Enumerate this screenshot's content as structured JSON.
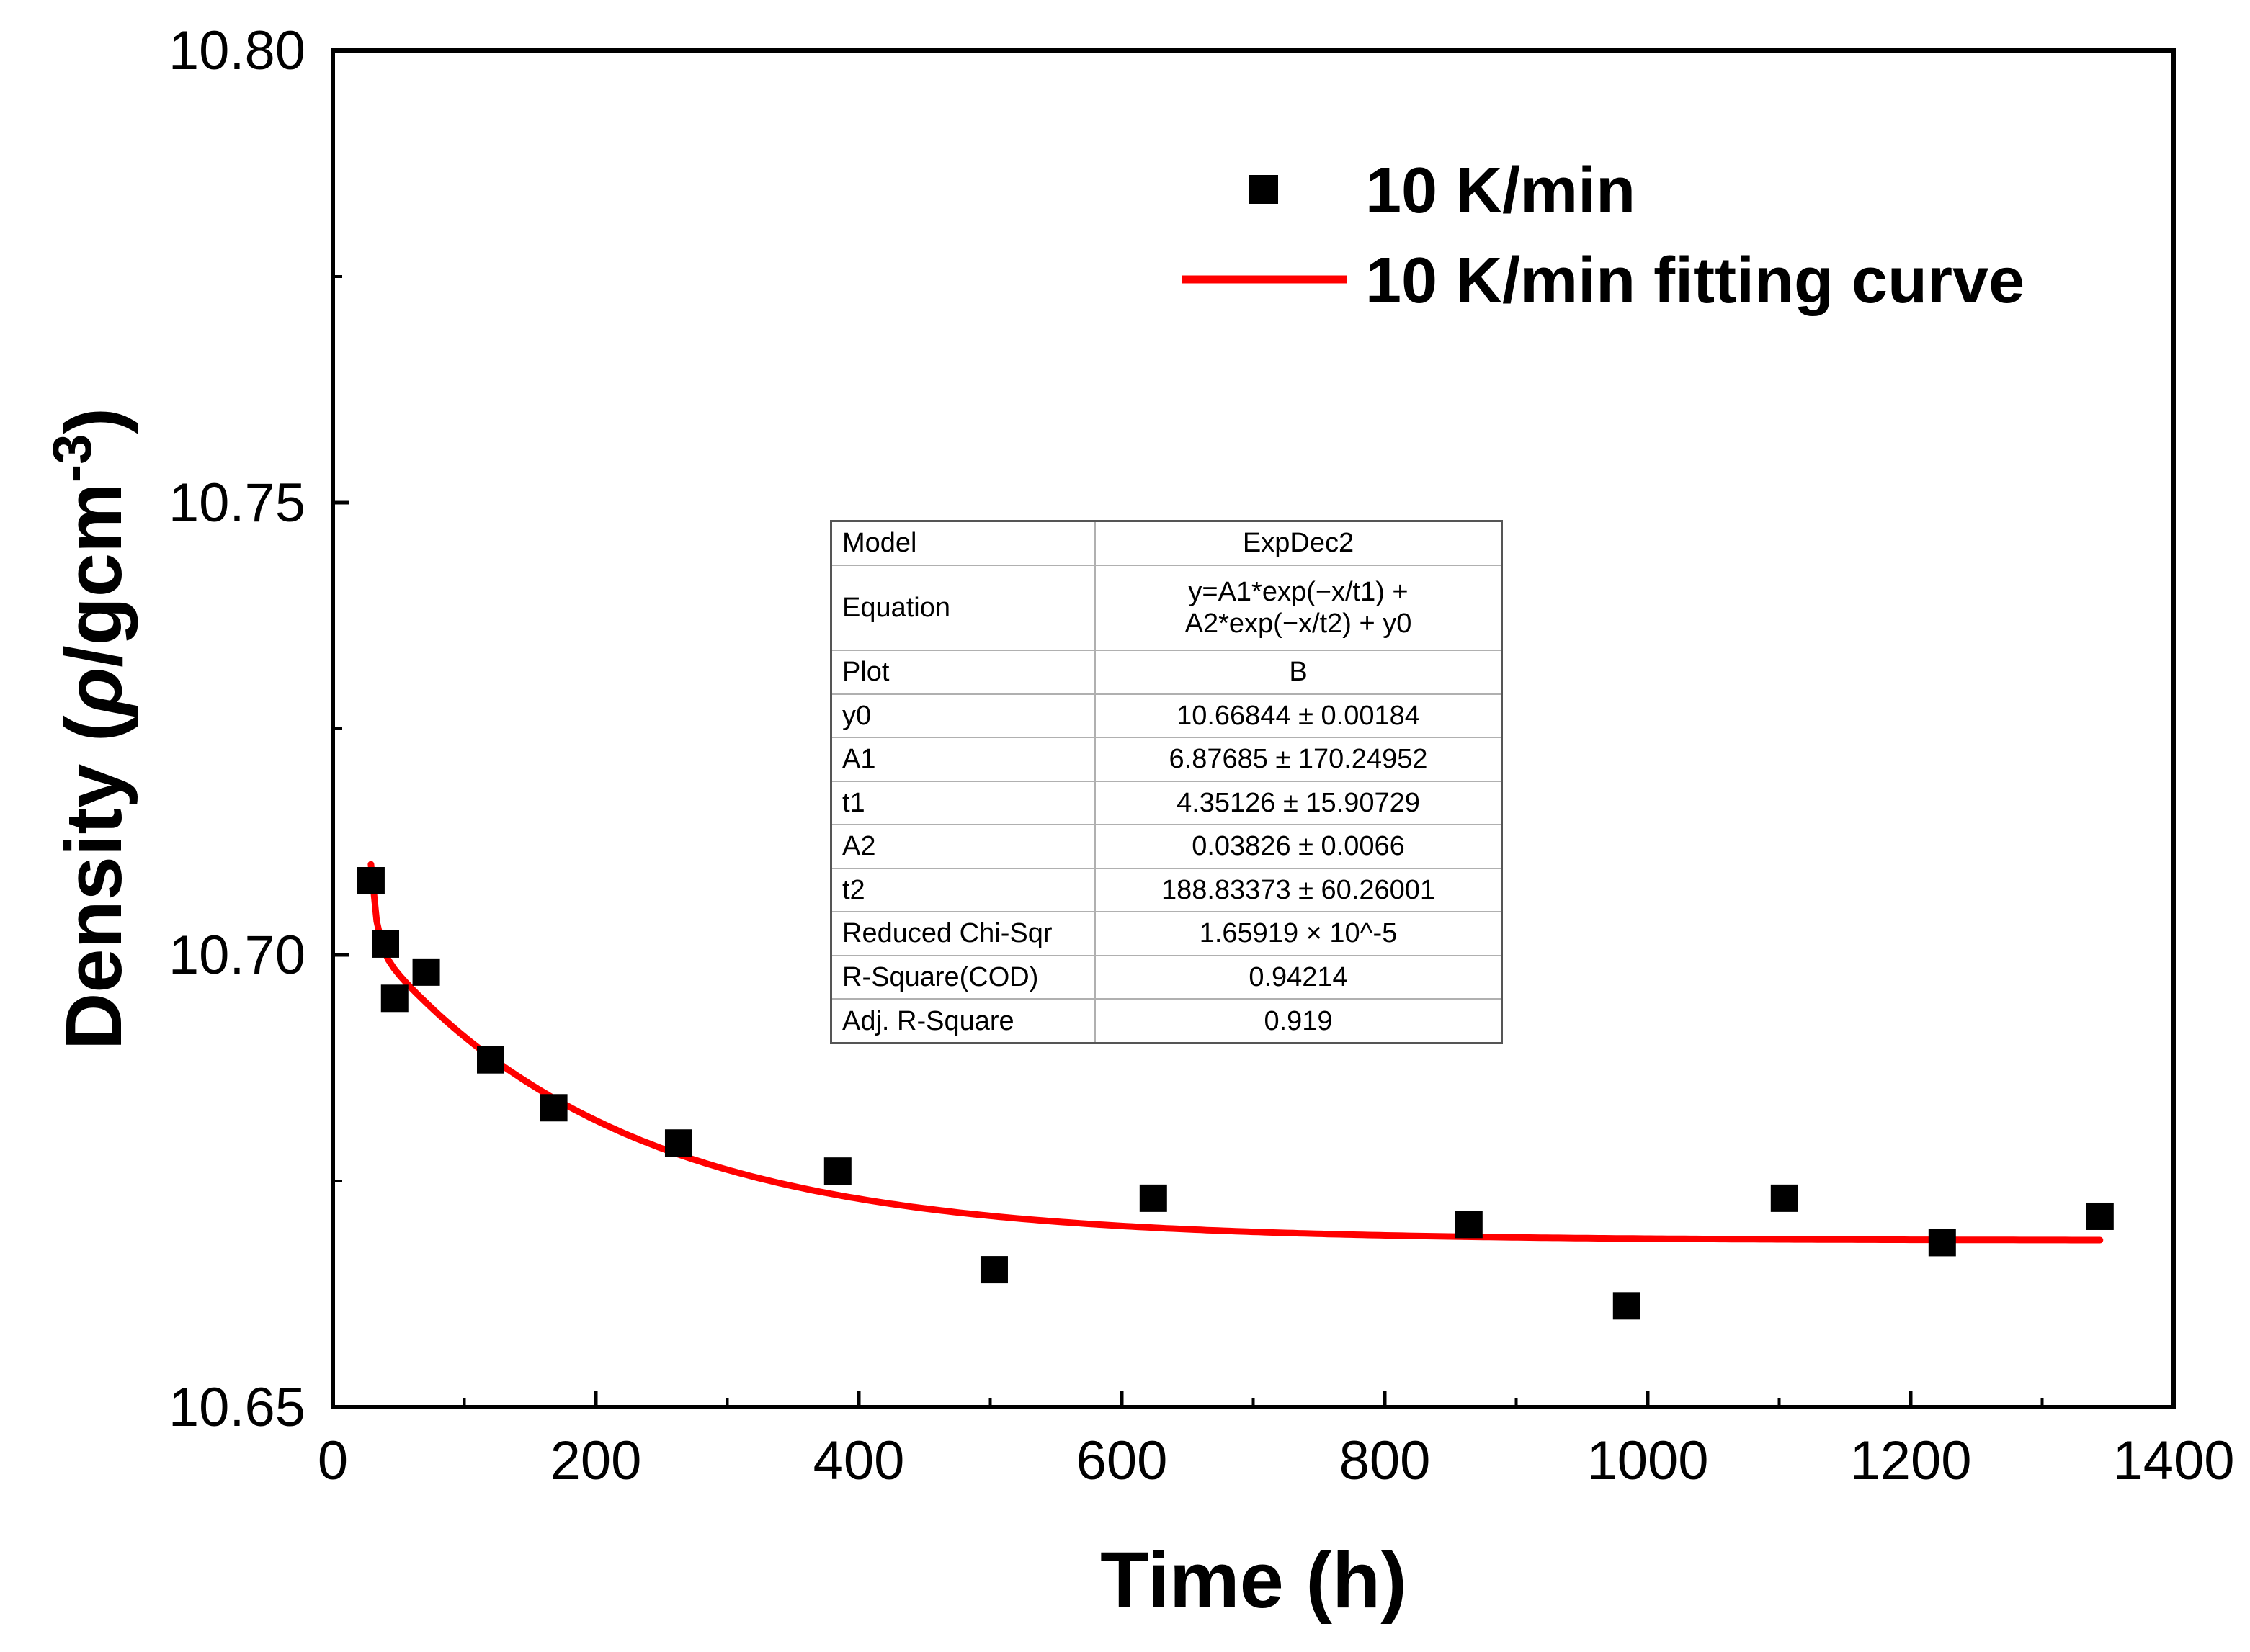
{
  "chart_data": {
    "type": "scatter",
    "title": "",
    "xlabel": "Time (h)",
    "ylabel_main": "Density (",
    "ylabel_rho": "ρ",
    "ylabel_unit": "/gcm",
    "ylabel_sup": "-3",
    "ylabel_close": ")",
    "xlim": [
      0,
      1400
    ],
    "ylim": [
      10.65,
      10.8
    ],
    "x_ticks": [
      0,
      200,
      400,
      600,
      800,
      1000,
      1200,
      1400
    ],
    "x_tick_labels": [
      "0",
      "200",
      "400",
      "600",
      "800",
      "1000",
      "1200",
      "1400"
    ],
    "y_ticks": [
      10.65,
      10.7,
      10.75,
      10.8
    ],
    "y_tick_labels": [
      "10.65",
      "10.70",
      "10.75",
      "10.80"
    ],
    "series": [
      {
        "name": "10 K/min",
        "kind": "scatter",
        "color": "#000000",
        "x": [
          29,
          40,
          47,
          71,
          120,
          168,
          263,
          384,
          503,
          624,
          864,
          984,
          1104,
          1224,
          1344
        ],
        "y": [
          10.7082,
          10.7012,
          10.6952,
          10.6981,
          10.6884,
          10.6831,
          10.6792,
          10.6761,
          10.6652,
          10.6731,
          10.6702,
          10.6612,
          10.6731,
          10.6682,
          10.6711
        ]
      },
      {
        "name": "10 K/min fitting curve",
        "kind": "line",
        "color": "#ff0000",
        "model": {
          "y0": 10.66844,
          "A1": 6.87685,
          "t1": 4.35126,
          "A2": 0.03826,
          "t2": 188.83373
        },
        "x_range": [
          29,
          1344
        ]
      }
    ],
    "legend": [
      {
        "label": "10 K/min",
        "marker": "square"
      },
      {
        "label": "10 K/min fitting curve",
        "marker": "line"
      }
    ],
    "legend_position": "top-right",
    "fit_table": [
      {
        "key": "Model",
        "value": "ExpDec2"
      },
      {
        "key": "Equation",
        "value": "y=A1*exp(−x/t1) + A2*exp(−x/t2) + y0"
      },
      {
        "key": "Plot",
        "value": "B"
      },
      {
        "key": "y0",
        "value": "10.66844 ± 0.00184"
      },
      {
        "key": "A1",
        "value": "6.87685 ± 170.24952"
      },
      {
        "key": "t1",
        "value": "4.35126 ± 15.90729"
      },
      {
        "key": "A2",
        "value": "0.03826 ± 0.0066"
      },
      {
        "key": "t2",
        "value": "188.83373 ± 60.26001"
      },
      {
        "key": "Reduced Chi-Sqr",
        "value": "1.65919 × 10^-5"
      },
      {
        "key": "R-Square(COD)",
        "value": "0.94214"
      },
      {
        "key": "Adj. R-Square",
        "value": "0.919"
      }
    ]
  }
}
